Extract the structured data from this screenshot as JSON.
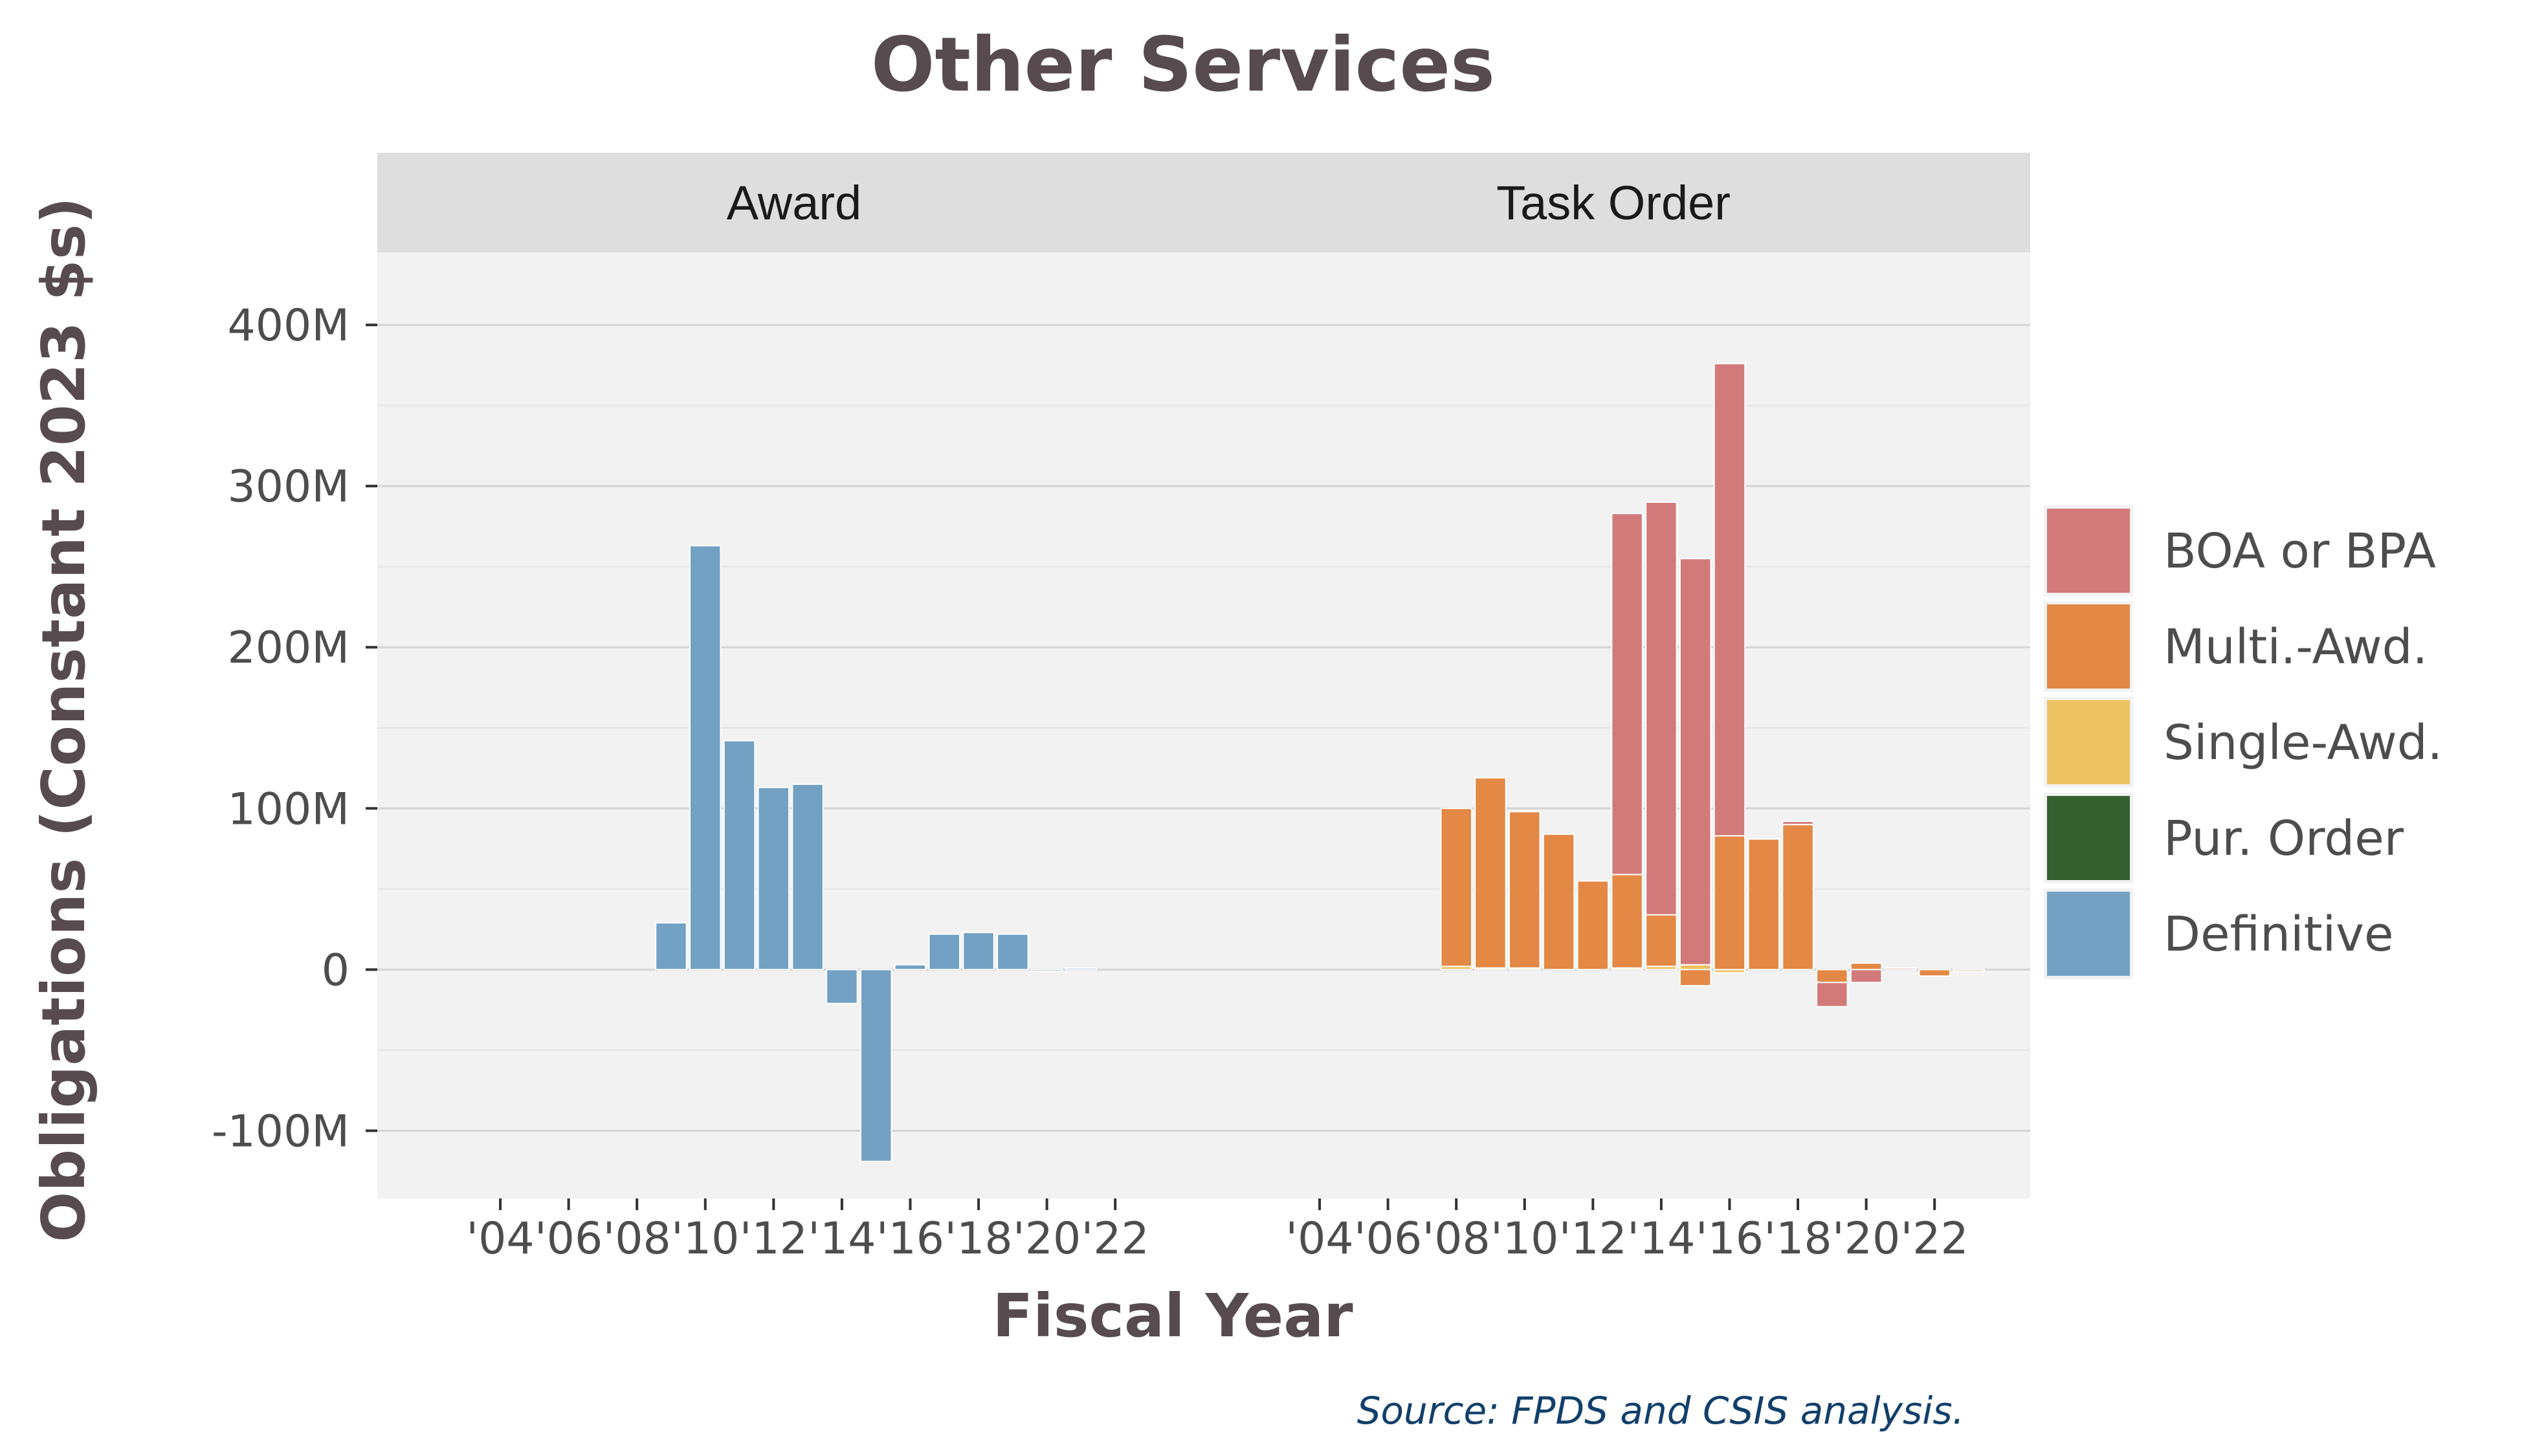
{
  "chart_data": {
    "type": "bar",
    "stacked": true,
    "title": "Other Services",
    "xlabel": "Fiscal Year",
    "ylabel": "Obligations (Constant 2023 $s)",
    "caption": "Source: FPDS and CSIS analysis.",
    "ylim": [
      -142,
      445
    ],
    "xlim": [
      2000.4,
      2024.8
    ],
    "y_ticks": [
      {
        "value": -100,
        "label": "-100M"
      },
      {
        "value": 0,
        "label": "0"
      },
      {
        "value": 100,
        "label": "100M"
      },
      {
        "value": 200,
        "label": "200M"
      },
      {
        "value": 300,
        "label": "300M"
      },
      {
        "value": 400,
        "label": "400M"
      }
    ],
    "x_ticks": [
      {
        "value": 2004,
        "label": "'04"
      },
      {
        "value": 2006,
        "label": "'06"
      },
      {
        "value": 2008,
        "label": "'08"
      },
      {
        "value": 2010,
        "label": "'10"
      },
      {
        "value": 2012,
        "label": "'12"
      },
      {
        "value": 2014,
        "label": "'14"
      },
      {
        "value": 2016,
        "label": "'16"
      },
      {
        "value": 2018,
        "label": "'18"
      },
      {
        "value": 2020,
        "label": "'20"
      },
      {
        "value": 2022,
        "label": "'22"
      }
    ],
    "grid": true,
    "legend_position": "right",
    "legend": [
      {
        "name": "BOA or BPA",
        "color": "#d27a79"
      },
      {
        "name": "Multi.-Awd.",
        "color": "#e38845"
      },
      {
        "name": "Single-Awd.",
        "color": "#edc263"
      },
      {
        "name": "Pur. Order",
        "color": "#346030"
      },
      {
        "name": "Definitive",
        "color": "#72a1c4"
      }
    ],
    "panels": [
      {
        "title": "Award",
        "x": [
          2009,
          2010,
          2011,
          2012,
          2013,
          2014,
          2015,
          2016,
          2017,
          2018,
          2019,
          2020,
          2021
        ],
        "series": [
          {
            "name": "Definitive",
            "values": [
              29,
              263,
              142,
              113,
              115,
              -21,
              -119,
              3,
              22,
              23,
              22,
              -1,
              1
            ]
          }
        ]
      },
      {
        "title": "Task Order",
        "x": [
          2008,
          2009,
          2010,
          2011,
          2012,
          2013,
          2014,
          2015,
          2016,
          2017,
          2018,
          2019,
          2020,
          2021,
          2022,
          2023
        ],
        "series": [
          {
            "name": "Single-Awd.",
            "values": [
              2,
              1,
              1,
              0,
              0,
              1,
              2,
              3,
              -2,
              0,
              0,
              0,
              0,
              0,
              0,
              0
            ]
          },
          {
            "name": "Multi.-Awd.",
            "values": [
              98,
              118,
              97,
              84,
              55,
              58,
              32,
              -10,
              83,
              81,
              90,
              -8,
              4,
              0,
              -4,
              -1
            ]
          },
          {
            "name": "BOA or BPA",
            "values": [
              0,
              0,
              0,
              0,
              0,
              224,
              256,
              252,
              293,
              0,
              2,
              -15,
              -8,
              1,
              0,
              0
            ]
          }
        ]
      }
    ]
  }
}
